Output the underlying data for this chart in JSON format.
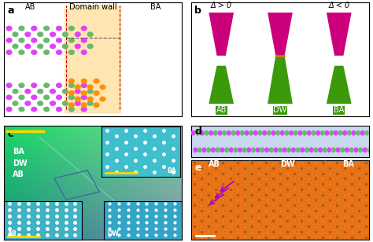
{
  "panel_labels": [
    "a",
    "b",
    "c",
    "d",
    "e"
  ],
  "panel_label_fontsize": 9,
  "panel_label_color": "#000000",
  "bg_color": "#ffffff",
  "fig_width": 4.74,
  "fig_height": 3.08,
  "panel_a": {
    "title_AB": "AB",
    "title_DW": "Domain wall",
    "title_BA": "BA",
    "atom_color_1": "#e040fb",
    "atom_color_2": "#66bb6a",
    "atom_color_3": "#ff8f00",
    "domain_wall_color": "#ffd580",
    "dashed_line_color": "#cc0000",
    "dashed_black_color": "#333333"
  },
  "panel_b": {
    "delta_pos_text": "Δ > 0",
    "delta_neg_text": "Δ < 0",
    "label_AB": "AB",
    "label_DW": "DW",
    "label_BA": "BA",
    "cone_top_color": "#cc007a",
    "cone_bottom_color": "#3a9a0a",
    "cone_cross_color": "#e88010",
    "text_color": "#ffffff"
  },
  "panel_c": {
    "gradient_colors": [
      "#00bcd4",
      "#4caf50",
      "#80d8c8"
    ],
    "label_AB": "AB",
    "label_DW": "DW",
    "label_BA": "BA",
    "scale_bar_color": "#ffd700",
    "text_color": "#ffffff",
    "inset_bg": "#78c8d8"
  },
  "panel_d": {
    "atom_color_1": "#e040fb",
    "atom_color_2": "#66bb6a",
    "bg_color": "#b0c4de"
  },
  "panel_e": {
    "bg_color": "#e07020",
    "label_AB": "AB",
    "label_DW": "DW",
    "label_BA": "BA",
    "dashed_line_color": "#6abf6a",
    "arrow_color": "#aa00cc",
    "text_color": "#ffffff",
    "scale_bar_color": "#ffffff"
  }
}
